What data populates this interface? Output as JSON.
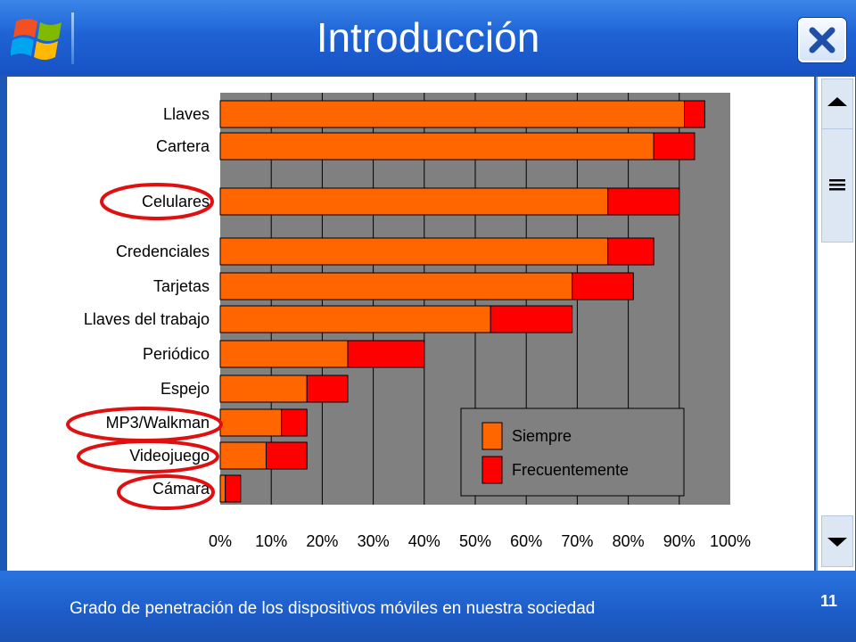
{
  "slide": {
    "title": "Introducción",
    "caption": "Grado de penetración de los dispositivos móviles en nuestra sociedad",
    "page_number": "11"
  },
  "icons": {
    "logo": "windows-flag-icon",
    "close": "close-icon",
    "scroll_up": "arrow-up-icon",
    "scroll_thumb": "grip-lines-icon",
    "scroll_down": "arrow-down-icon"
  },
  "colors": {
    "siempre": "#ff6600",
    "frecuentemente": "#ff0000",
    "plot_background": "#808080",
    "highlight_circle": "#e01010"
  },
  "chart_data": {
    "type": "bar",
    "orientation": "horizontal",
    "stacked": true,
    "categories": [
      "Llaves",
      "Cartera",
      "Celulares",
      "Credenciales",
      "Tarjetas",
      "Llaves del trabajo",
      "Periódico",
      "Espejo",
      "MP3/Walkman",
      "Videojuego",
      "Cámara"
    ],
    "series": [
      {
        "name": "Siempre",
        "values": [
          91,
          85,
          76,
          76,
          69,
          53,
          25,
          17,
          12,
          9,
          1
        ]
      },
      {
        "name": "Frecuentemente",
        "values": [
          4,
          8,
          14,
          9,
          12,
          16,
          15,
          8,
          5,
          8,
          3
        ]
      }
    ],
    "x_ticks": [
      "0%",
      "10%",
      "20%",
      "30%",
      "40%",
      "50%",
      "60%",
      "70%",
      "80%",
      "90%",
      "100%"
    ],
    "xlim": [
      0,
      100
    ],
    "grid": true,
    "legend_position": "bottom-right inside plot",
    "highlighted_categories": [
      "Celulares",
      "MP3/Walkman",
      "Videojuego",
      "Cámara"
    ]
  }
}
